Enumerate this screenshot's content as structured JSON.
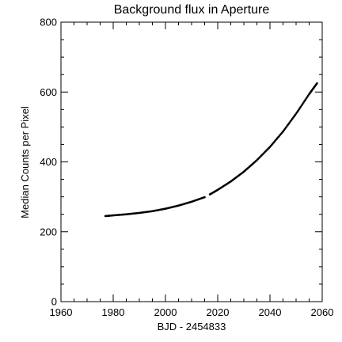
{
  "chart_data": {
    "type": "scatter",
    "title": "Background flux in Aperture",
    "xlabel": "BJD - 2454833",
    "ylabel": "Median Counts per Pixel",
    "xlim": [
      1960,
      2060
    ],
    "ylim": [
      0,
      800
    ],
    "x_ticks": [
      1960,
      1980,
      2000,
      2020,
      2040,
      2060
    ],
    "y_ticks": [
      0,
      200,
      400,
      600,
      800
    ],
    "x_minor_step": 5,
    "y_minor_step": 50,
    "grid": false,
    "series": [
      {
        "segments": [
          {
            "x": [
              1977,
              1980,
              1985,
              1990,
              1995,
              2000,
              2005,
              2010,
              2015
            ],
            "y": [
              245,
              247,
              250,
              254,
              259,
              266,
              275,
              286,
              299
            ]
          },
          {
            "x": [
              2017,
              2020,
              2025,
              2030,
              2035,
              2040,
              2045,
              2050,
              2055,
              2058
            ],
            "y": [
              307,
              320,
              344,
              372,
              405,
              443,
              487,
              538,
              594,
              625
            ]
          }
        ]
      }
    ]
  }
}
